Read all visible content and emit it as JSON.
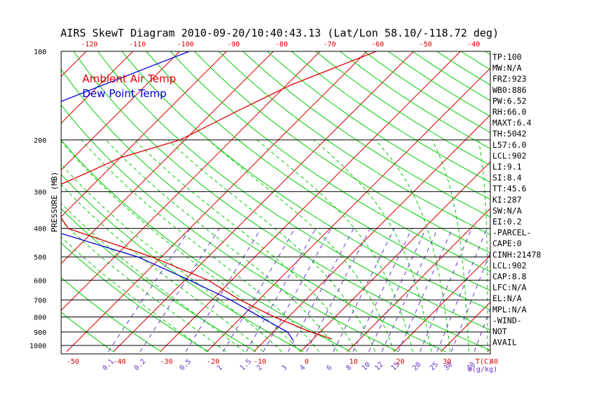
{
  "chart_data": {
    "type": "line",
    "title": "AIRS SkewT Diagram 2010-09-20/10:40:43.13 (Lat/Lon 58.10/-118.72 deg)",
    "ylabel": "PRESSURE (MB)",
    "xlabel_top_unit": "",
    "xlabel_bottom": "T(C)",
    "mixing_label": "w(g/kg)",
    "pressure_ticks": [
      100,
      200,
      300,
      400,
      500,
      600,
      700,
      800,
      900,
      1000
    ],
    "top_ticks": [
      -120,
      -110,
      -100,
      -90,
      -80,
      -70,
      -60,
      -50,
      -40
    ],
    "bottom_ticks": [
      -50,
      -40,
      -30,
      -20,
      -10,
      0,
      10,
      20,
      30,
      40
    ],
    "mixing_ratio_ticks": [
      "0.1",
      "0.2",
      "0.5",
      "1",
      "1.5",
      "2",
      "3",
      "4",
      "6",
      "8",
      "10",
      "12",
      "15",
      "20",
      "25",
      "30",
      "40"
    ],
    "ylim": [
      1000,
      100
    ],
    "legend": [
      {
        "name": "Ambient Air Temp",
        "color": "#dd0000"
      },
      {
        "name": "Dew Point Temp",
        "color": "#0000dd"
      }
    ],
    "colors": {
      "isotherm": "#dd0000",
      "dry_adiabat": "#00cc00",
      "moist_adiabat": "#00cc00",
      "mixing_ratio": "#6633cc",
      "isobar": "#000000"
    },
    "series": [
      {
        "name": "Ambient Air Temp",
        "points": [
          {
            "p": 100,
            "t": -48
          },
          {
            "p": 130,
            "t": -59
          },
          {
            "p": 160,
            "t": -65
          },
          {
            "p": 200,
            "t": -71
          },
          {
            "p": 230,
            "t": -80
          },
          {
            "p": 260,
            "t": -84
          },
          {
            "p": 300,
            "t": -89
          },
          {
            "p": 400,
            "t": -76
          },
          {
            "p": 500,
            "t": -52
          },
          {
            "p": 600,
            "t": -35
          },
          {
            "p": 700,
            "t": -24
          },
          {
            "p": 800,
            "t": -13
          },
          {
            "p": 900,
            "t": -2
          },
          {
            "p": 950,
            "t": 4
          }
        ]
      },
      {
        "name": "Dew Point Temp",
        "points": [
          {
            "p": 100,
            "t": -88
          },
          {
            "p": 160,
            "t": -108
          },
          {
            "p": 200,
            "t": -101
          },
          {
            "p": 300,
            "t": -91
          },
          {
            "p": 400,
            "t": -81
          },
          {
            "p": 500,
            "t": -55
          },
          {
            "p": 600,
            "t": -39
          },
          {
            "p": 700,
            "t": -26
          },
          {
            "p": 800,
            "t": -16
          },
          {
            "p": 900,
            "t": -7
          },
          {
            "p": 960,
            "t": -4
          }
        ]
      }
    ]
  },
  "indices": [
    "TP:100",
    "MW:N/A",
    "FRZ:923",
    "WB0:886",
    "PW:6.52",
    "RH:66.0",
    "MAXT:6.4",
    "TH:5042",
    "L57:6.0",
    "LCL:902",
    "LI:9.1",
    "SI:8.4",
    "TT:45.6",
    "KI:287",
    "SW:N/A",
    "EI:0.2",
    "-PARCEL-",
    "CAPE:0",
    "CINH:21478",
    "LCL:902",
    "CAP:8.8",
    "LFC:N/A",
    "EL:N/A",
    "MPL:N/A",
    "-WIND-",
    "NOT",
    "AVAIL"
  ]
}
